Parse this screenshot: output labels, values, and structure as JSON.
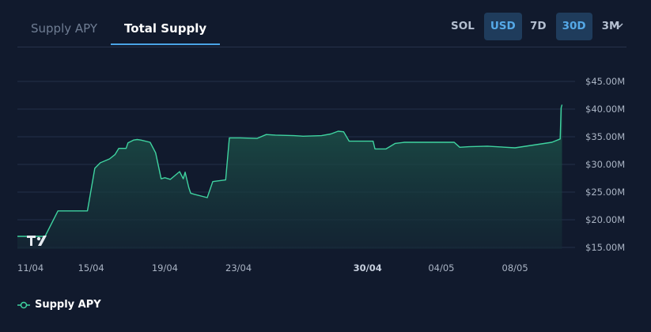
{
  "tabs": [
    {
      "label": "Supply APY"
    },
    {
      "label": "Total Supply"
    }
  ],
  "currency_toggle": [
    "SOL",
    "USD"
  ],
  "currency_selected": "USD",
  "range_toggle": [
    "7D",
    "30D",
    "3M"
  ],
  "range_selected": "30D",
  "colors": {
    "line": "#3fd3a0",
    "accent": "#55a9e8",
    "background": "#111a2d"
  },
  "chart_data": {
    "type": "area",
    "y_tick_labels": [
      "$45.00M",
      "$40.00M",
      "$35.00M",
      "$30.00M",
      "$25.00M",
      "$20.00M",
      "$15.00M"
    ],
    "y_ticks": [
      45,
      40,
      35,
      30,
      25,
      20,
      15
    ],
    "ylim": [
      14,
      46
    ],
    "y_unit": "USD millions",
    "x_tick_labels": [
      "11/04",
      "15/04",
      "19/04",
      "23/04",
      "30/04",
      "04/05",
      "08/05"
    ],
    "x_tick_days": [
      0,
      4,
      8,
      12,
      19,
      23,
      27
    ],
    "x_bold_label": "30/04",
    "x_axis_start": "2024-04-11",
    "grid": true,
    "legend_position": "bottom-left",
    "series": [
      {
        "name": "Supply APY",
        "x": [
          0,
          1.5,
          2.2,
          3.8,
          4.2,
          4.5,
          5.0,
          5.3,
          5.5,
          5.9,
          6.0,
          6.3,
          6.5,
          6.7,
          7.2,
          7.5,
          7.8,
          8.0,
          8.3,
          8.8,
          9.0,
          9.1,
          9.3,
          9.4,
          9.6,
          10.3,
          10.6,
          11.3,
          11.5,
          12.1,
          13.0,
          13.5,
          14.0,
          15.0,
          15.5,
          16.5,
          17.0,
          17.4,
          17.7,
          18.0,
          19.3,
          19.4,
          20.0,
          20.5,
          21.0,
          22.5,
          23.7,
          24.0,
          24.5,
          25.5,
          26.5,
          27.0,
          28.0,
          29.0,
          29.45,
          29.5,
          29.55
        ],
        "y": [
          17.0,
          17.0,
          21.6,
          21.6,
          29.3,
          30.3,
          31.0,
          31.8,
          32.9,
          32.9,
          33.9,
          34.4,
          34.5,
          34.4,
          34.0,
          32.1,
          27.4,
          27.6,
          27.3,
          28.7,
          27.4,
          28.6,
          25.8,
          24.8,
          24.6,
          24.0,
          26.9,
          27.2,
          34.8,
          34.8,
          34.7,
          35.4,
          35.3,
          35.2,
          35.1,
          35.2,
          35.5,
          36.0,
          35.9,
          34.2,
          34.2,
          32.8,
          32.8,
          33.8,
          34.0,
          34.0,
          34.0,
          33.1,
          33.2,
          33.3,
          33.1,
          33.0,
          33.5,
          34.0,
          34.6,
          40.2,
          40.8
        ]
      }
    ]
  }
}
